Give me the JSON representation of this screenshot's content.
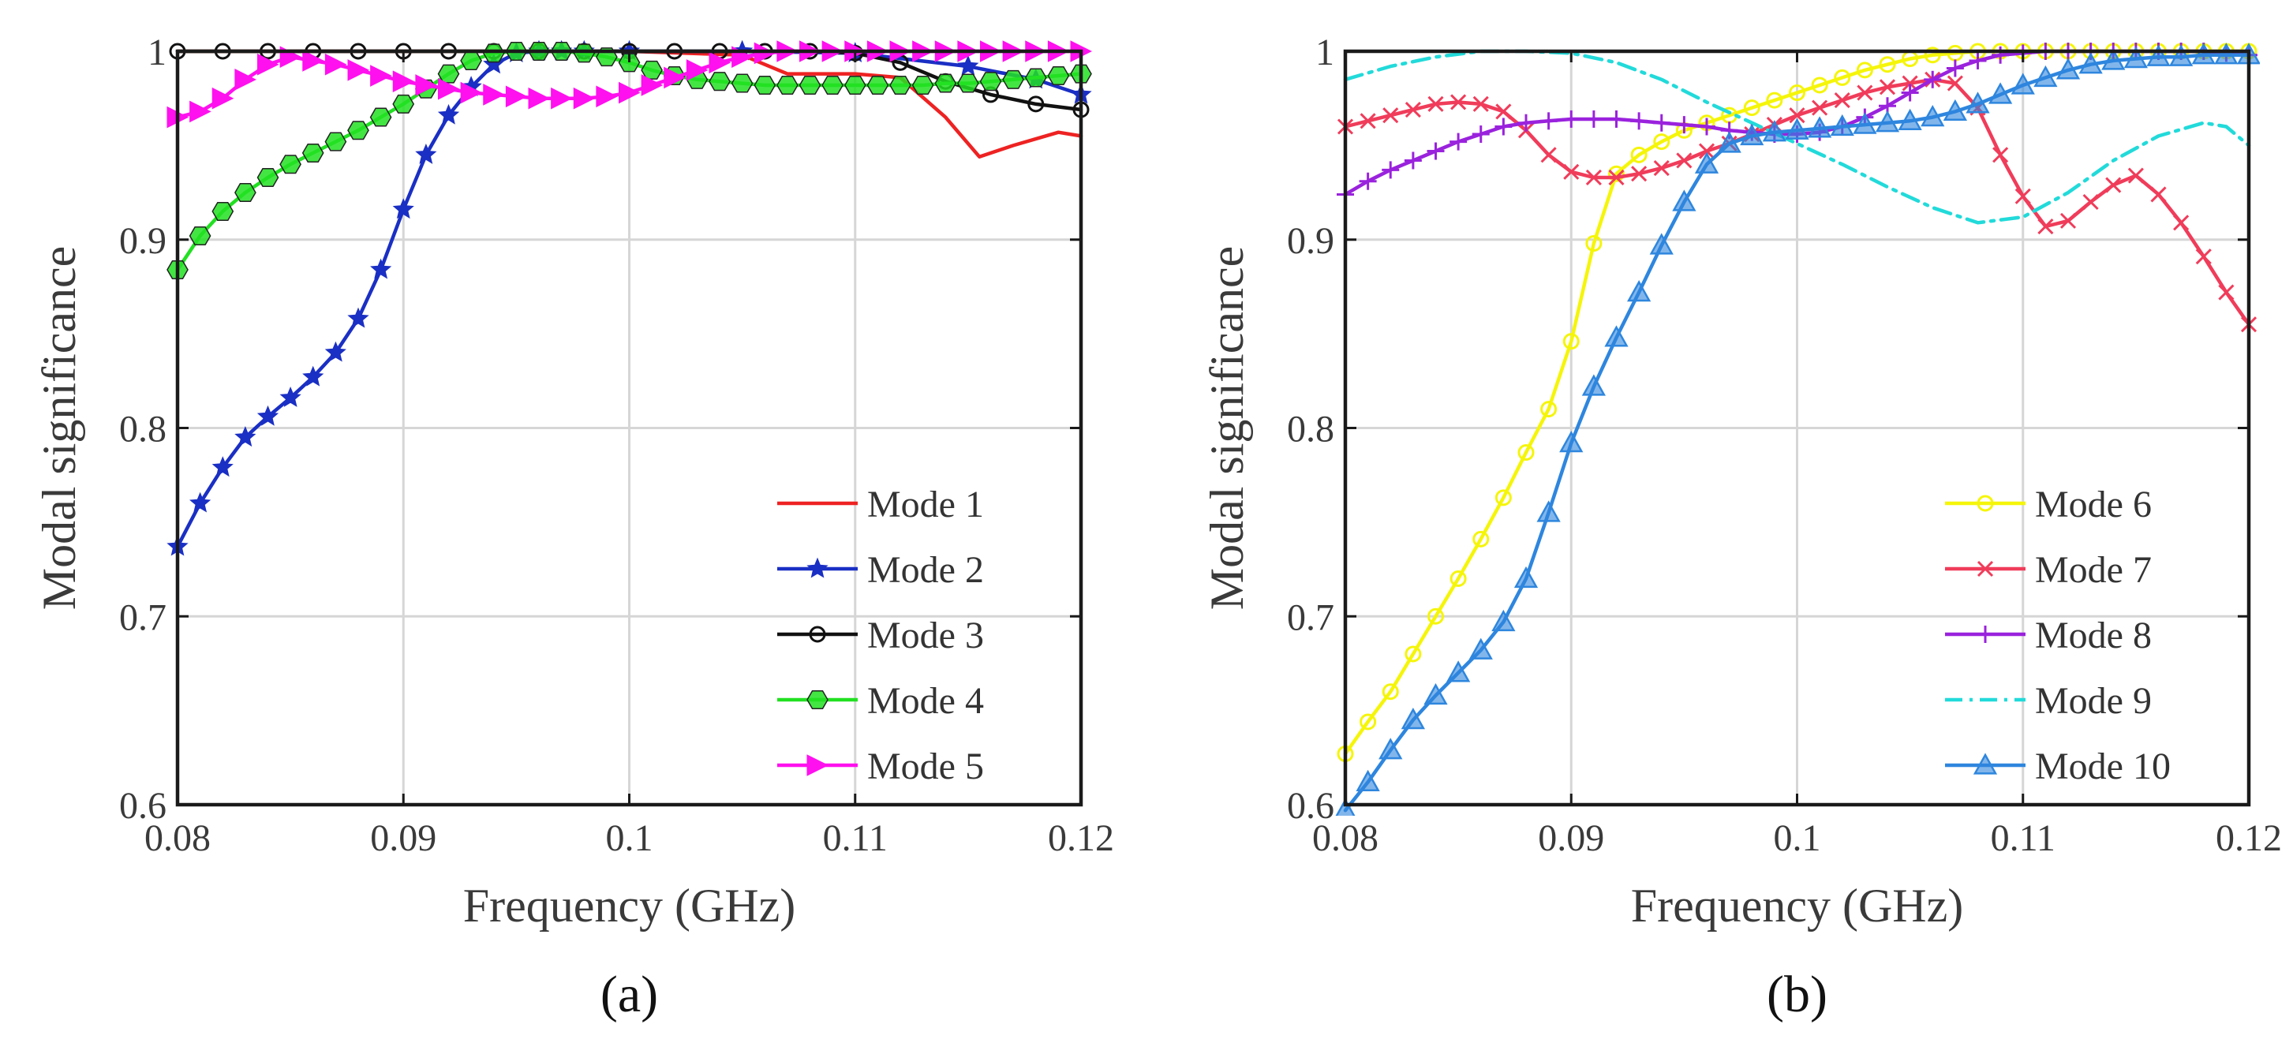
{
  "chart_data": [
    {
      "type": "line",
      "caption": "(a)",
      "xlabel": "Frequency (GHz)",
      "ylabel": "Modal significance",
      "xlim": [
        0.08,
        0.12
      ],
      "ylim": [
        0.6,
        1.0
      ],
      "xticks": [
        0.08,
        0.09,
        0.1,
        0.11,
        0.12
      ],
      "xtick_labels": [
        "0.08",
        "0.09",
        "0.1",
        "0.11",
        "0.12"
      ],
      "yticks": [
        0.6,
        0.7,
        0.8,
        0.9,
        1.0
      ],
      "ytick_labels": [
        "0.6",
        "0.7",
        "0.8",
        "0.9",
        "1"
      ],
      "grid": true,
      "legend_position": "bottom-right",
      "series": [
        {
          "name": "Mode 1",
          "color": "#ee2222",
          "marker": "none",
          "dash": "solid",
          "x": [
            0.08,
            0.085,
            0.09,
            0.095,
            0.1,
            0.105,
            0.107,
            0.11,
            0.112,
            0.114,
            0.1155,
            0.117,
            0.119,
            0.12
          ],
          "y": [
            1.0,
            1.0,
            1.0,
            1.0,
            1.0,
            0.998,
            0.988,
            0.988,
            0.986,
            0.965,
            0.944,
            0.95,
            0.957,
            0.955
          ]
        },
        {
          "name": "Mode 2",
          "color": "#1a2fc4",
          "marker": "star",
          "dash": "solid",
          "x": [
            0.08,
            0.081,
            0.082,
            0.083,
            0.084,
            0.085,
            0.086,
            0.087,
            0.088,
            0.089,
            0.09,
            0.091,
            0.092,
            0.093,
            0.094,
            0.095,
            0.096,
            0.097,
            0.098,
            0.1,
            0.105,
            0.11,
            0.115,
            0.118,
            0.12
          ],
          "y": [
            0.737,
            0.76,
            0.779,
            0.795,
            0.806,
            0.816,
            0.827,
            0.84,
            0.858,
            0.884,
            0.916,
            0.945,
            0.966,
            0.981,
            0.993,
            0.999,
            1.0,
            1.0,
            1.0,
            1.0,
            1.0,
            0.999,
            0.992,
            0.985,
            0.977
          ]
        },
        {
          "name": "Mode 3",
          "color": "#111111",
          "marker": "circle",
          "dash": "solid",
          "x": [
            0.08,
            0.082,
            0.084,
            0.086,
            0.088,
            0.09,
            0.092,
            0.094,
            0.096,
            0.098,
            0.1,
            0.102,
            0.104,
            0.106,
            0.108,
            0.11,
            0.112,
            0.114,
            0.116,
            0.118,
            0.12
          ],
          "y": [
            1.0,
            1.0,
            1.0,
            1.0,
            1.0,
            1.0,
            1.0,
            1.0,
            1.0,
            1.0,
            1.0,
            1.0,
            1.0,
            1.0,
            1.0,
            0.999,
            0.994,
            0.984,
            0.977,
            0.972,
            0.969
          ]
        },
        {
          "name": "Mode 4",
          "color": "#22e022",
          "marker": "hexagon",
          "dash": "solid",
          "x": [
            0.08,
            0.081,
            0.082,
            0.083,
            0.084,
            0.085,
            0.086,
            0.087,
            0.088,
            0.089,
            0.09,
            0.091,
            0.092,
            0.093,
            0.094,
            0.095,
            0.096,
            0.097,
            0.098,
            0.099,
            0.1,
            0.101,
            0.102,
            0.103,
            0.104,
            0.105,
            0.106,
            0.107,
            0.108,
            0.109,
            0.11,
            0.111,
            0.112,
            0.113,
            0.114,
            0.115,
            0.116,
            0.117,
            0.118,
            0.119,
            0.12
          ],
          "y": [
            0.884,
            0.902,
            0.915,
            0.925,
            0.933,
            0.94,
            0.946,
            0.952,
            0.958,
            0.965,
            0.972,
            0.98,
            0.988,
            0.995,
            0.999,
            1.0,
            1.0,
            1.0,
            0.999,
            0.997,
            0.994,
            0.99,
            0.987,
            0.985,
            0.984,
            0.983,
            0.982,
            0.982,
            0.982,
            0.982,
            0.982,
            0.982,
            0.982,
            0.982,
            0.983,
            0.983,
            0.984,
            0.985,
            0.986,
            0.987,
            0.988
          ]
        },
        {
          "name": "Mode 5",
          "color": "#ff10ee",
          "marker": "triangle-right",
          "dash": "solid",
          "x": [
            0.08,
            0.081,
            0.082,
            0.083,
            0.084,
            0.085,
            0.086,
            0.087,
            0.088,
            0.089,
            0.09,
            0.091,
            0.092,
            0.093,
            0.094,
            0.095,
            0.096,
            0.097,
            0.098,
            0.099,
            0.1,
            0.101,
            0.102,
            0.103,
            0.104,
            0.105,
            0.106,
            0.107,
            0.108,
            0.109,
            0.11,
            0.111,
            0.112,
            0.113,
            0.114,
            0.115,
            0.116,
            0.117,
            0.118,
            0.119,
            0.12
          ],
          "y": [
            0.965,
            0.968,
            0.975,
            0.985,
            0.993,
            0.997,
            0.995,
            0.993,
            0.99,
            0.987,
            0.984,
            0.982,
            0.98,
            0.978,
            0.977,
            0.976,
            0.975,
            0.975,
            0.975,
            0.976,
            0.978,
            0.982,
            0.986,
            0.99,
            0.994,
            0.997,
            0.999,
            1.0,
            1.0,
            1.0,
            1.0,
            1.0,
            1.0,
            1.0,
            1.0,
            1.0,
            1.0,
            1.0,
            1.0,
            1.0,
            1.0
          ]
        }
      ]
    },
    {
      "type": "line",
      "caption": "(b)",
      "xlabel": "Frequency (GHz)",
      "ylabel": "Modal significance",
      "xlim": [
        0.08,
        0.12
      ],
      "ylim": [
        0.6,
        1.0
      ],
      "xticks": [
        0.08,
        0.09,
        0.1,
        0.11,
        0.12
      ],
      "xtick_labels": [
        "0.08",
        "0.09",
        "0.1",
        "0.11",
        "0.12"
      ],
      "yticks": [
        0.6,
        0.7,
        0.8,
        0.9,
        1.0
      ],
      "ytick_labels": [
        "0.6",
        "0.7",
        "0.8",
        "0.9",
        "1"
      ],
      "grid": true,
      "legend_position": "bottom-right",
      "series": [
        {
          "name": "Mode 6",
          "color": "#f5f50a",
          "marker": "circle",
          "dash": "solid",
          "x": [
            0.08,
            0.081,
            0.082,
            0.083,
            0.084,
            0.085,
            0.086,
            0.087,
            0.088,
            0.089,
            0.09,
            0.091,
            0.092,
            0.093,
            0.094,
            0.095,
            0.096,
            0.097,
            0.098,
            0.099,
            0.1,
            0.101,
            0.102,
            0.103,
            0.104,
            0.105,
            0.106,
            0.107,
            0.108,
            0.109,
            0.11,
            0.111,
            0.112,
            0.113,
            0.114,
            0.115,
            0.116,
            0.117,
            0.118,
            0.119,
            0.12
          ],
          "y": [
            0.627,
            0.644,
            0.66,
            0.68,
            0.7,
            0.72,
            0.741,
            0.763,
            0.787,
            0.81,
            0.846,
            0.898,
            0.935,
            0.945,
            0.952,
            0.958,
            0.962,
            0.966,
            0.97,
            0.974,
            0.978,
            0.982,
            0.986,
            0.99,
            0.993,
            0.996,
            0.998,
            0.999,
            1.0,
            1.0,
            1.0,
            1.0,
            1.0,
            1.0,
            1.0,
            1.0,
            1.0,
            1.0,
            1.0,
            1.0,
            1.0
          ]
        },
        {
          "name": "Mode 7",
          "color": "#f03c5a",
          "marker": "x",
          "dash": "solid",
          "x": [
            0.08,
            0.081,
            0.082,
            0.083,
            0.084,
            0.085,
            0.086,
            0.087,
            0.088,
            0.089,
            0.09,
            0.091,
            0.092,
            0.093,
            0.094,
            0.095,
            0.096,
            0.097,
            0.098,
            0.099,
            0.1,
            0.101,
            0.102,
            0.103,
            0.104,
            0.105,
            0.106,
            0.107,
            0.108,
            0.109,
            0.11,
            0.111,
            0.112,
            0.113,
            0.114,
            0.115,
            0.116,
            0.117,
            0.118,
            0.119,
            0.12
          ],
          "y": [
            0.96,
            0.963,
            0.966,
            0.969,
            0.972,
            0.973,
            0.972,
            0.968,
            0.958,
            0.945,
            0.936,
            0.933,
            0.933,
            0.935,
            0.938,
            0.942,
            0.947,
            0.951,
            0.956,
            0.961,
            0.966,
            0.97,
            0.974,
            0.978,
            0.981,
            0.983,
            0.985,
            0.983,
            0.97,
            0.945,
            0.923,
            0.907,
            0.91,
            0.92,
            0.929,
            0.934,
            0.924,
            0.909,
            0.891,
            0.872,
            0.855
          ]
        },
        {
          "name": "Mode 8",
          "color": "#9a22dd",
          "marker": "plus",
          "dash": "solid",
          "x": [
            0.08,
            0.081,
            0.082,
            0.083,
            0.084,
            0.085,
            0.086,
            0.087,
            0.088,
            0.089,
            0.09,
            0.091,
            0.092,
            0.093,
            0.094,
            0.095,
            0.096,
            0.097,
            0.098,
            0.099,
            0.1,
            0.101,
            0.102,
            0.103,
            0.104,
            0.105,
            0.106,
            0.107,
            0.108,
            0.109,
            0.11,
            0.111,
            0.112,
            0.113,
            0.114,
            0.115,
            0.116,
            0.117,
            0.118,
            0.119,
            0.12
          ],
          "y": [
            0.924,
            0.931,
            0.937,
            0.942,
            0.947,
            0.952,
            0.956,
            0.96,
            0.962,
            0.963,
            0.964,
            0.964,
            0.964,
            0.963,
            0.962,
            0.961,
            0.96,
            0.958,
            0.957,
            0.956,
            0.956,
            0.957,
            0.96,
            0.965,
            0.971,
            0.978,
            0.985,
            0.991,
            0.995,
            0.998,
            0.999,
            1.0,
            1.0,
            1.0,
            1.0,
            1.0,
            1.0,
            1.0,
            1.0,
            0.999,
            0.998
          ]
        },
        {
          "name": "Mode 9",
          "color": "#22dada",
          "marker": "none",
          "dash": "dashdot",
          "x": [
            0.08,
            0.082,
            0.084,
            0.086,
            0.088,
            0.09,
            0.092,
            0.094,
            0.096,
            0.098,
            0.1,
            0.102,
            0.104,
            0.106,
            0.108,
            0.11,
            0.112,
            0.114,
            0.116,
            0.118,
            0.119,
            0.12
          ],
          "y": [
            0.985,
            0.992,
            0.997,
            1.0,
            1.0,
            0.999,
            0.994,
            0.985,
            0.973,
            0.962,
            0.951,
            0.94,
            0.928,
            0.917,
            0.909,
            0.912,
            0.925,
            0.942,
            0.955,
            0.962,
            0.96,
            0.95
          ]
        },
        {
          "name": "Mode 10",
          "color": "#2e86de",
          "marker": "triangle-up",
          "dash": "solid",
          "x": [
            0.08,
            0.081,
            0.082,
            0.083,
            0.084,
            0.085,
            0.086,
            0.087,
            0.088,
            0.089,
            0.09,
            0.091,
            0.092,
            0.093,
            0.094,
            0.095,
            0.096,
            0.097,
            0.098,
            0.099,
            0.1,
            0.101,
            0.102,
            0.103,
            0.104,
            0.105,
            0.106,
            0.107,
            0.108,
            0.109,
            0.11,
            0.111,
            0.112,
            0.113,
            0.114,
            0.115,
            0.116,
            0.117,
            0.118,
            0.119,
            0.12
          ],
          "y": [
            0.597,
            0.612,
            0.629,
            0.645,
            0.658,
            0.67,
            0.682,
            0.697,
            0.72,
            0.755,
            0.792,
            0.822,
            0.848,
            0.872,
            0.897,
            0.92,
            0.94,
            0.951,
            0.955,
            0.957,
            0.958,
            0.959,
            0.96,
            0.961,
            0.962,
            0.963,
            0.965,
            0.968,
            0.972,
            0.977,
            0.982,
            0.986,
            0.99,
            0.993,
            0.995,
            0.996,
            0.997,
            0.997,
            0.998,
            0.998,
            0.998
          ]
        }
      ]
    }
  ]
}
